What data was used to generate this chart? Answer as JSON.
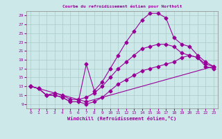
{
  "title": "Courbe du refroidissement éolien pour Northolt",
  "xlabel": "Windchill (Refroidissement éolien,°C)",
  "bg_color": "#cce8e8",
  "line_color": "#990099",
  "grid_color": "#aacccc",
  "xlim": [
    -0.5,
    23.5
  ],
  "ylim": [
    8,
    30
  ],
  "yticks": [
    9,
    11,
    13,
    15,
    17,
    19,
    21,
    23,
    25,
    27,
    29
  ],
  "xticks": [
    0,
    1,
    2,
    3,
    4,
    5,
    6,
    7,
    8,
    9,
    10,
    11,
    12,
    13,
    14,
    15,
    16,
    17,
    18,
    19,
    20,
    21,
    22,
    23
  ],
  "line1_x": [
    0,
    1,
    2,
    3,
    4,
    5,
    6,
    7,
    8,
    9,
    10,
    11,
    12,
    13,
    14,
    15,
    16,
    17,
    18,
    19,
    20,
    21,
    22,
    23
  ],
  "line1_y": [
    13.0,
    12.5,
    11.0,
    11.0,
    10.5,
    9.5,
    9.5,
    9.0,
    9.5,
    10.5,
    12.0,
    13.5,
    14.5,
    15.5,
    16.5,
    17.0,
    17.5,
    18.0,
    18.5,
    19.5,
    20.0,
    19.5,
    17.5,
    17.0
  ],
  "line2_x": [
    0,
    1,
    2,
    3,
    4,
    5,
    6,
    7,
    8,
    9,
    10,
    11,
    12,
    13,
    14,
    15,
    16,
    17,
    18,
    19,
    20,
    21,
    22,
    23
  ],
  "line2_y": [
    13.0,
    12.5,
    11.0,
    11.5,
    11.0,
    10.0,
    10.0,
    10.5,
    11.5,
    13.0,
    15.0,
    17.0,
    18.5,
    20.0,
    21.5,
    22.0,
    22.5,
    22.5,
    22.0,
    20.5,
    20.0,
    19.5,
    18.0,
    17.5
  ],
  "line3_x": [
    0,
    1,
    2,
    3,
    4,
    5,
    6,
    7,
    8,
    9,
    10,
    11,
    12,
    13,
    14,
    15,
    16,
    17,
    18,
    19,
    20,
    21,
    22,
    23
  ],
  "line3_y": [
    13.0,
    12.5,
    11.0,
    11.0,
    10.5,
    9.5,
    9.5,
    18.0,
    12.0,
    14.0,
    17.0,
    20.0,
    23.0,
    25.5,
    28.0,
    29.5,
    29.5,
    28.5,
    24.0,
    22.5,
    22.0,
    20.0,
    18.5,
    17.5
  ],
  "line4_x": [
    0,
    7,
    23
  ],
  "line4_y": [
    13.0,
    9.5,
    17.5
  ]
}
